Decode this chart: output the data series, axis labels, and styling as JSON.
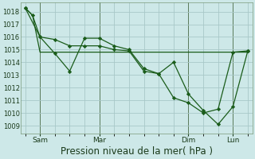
{
  "background_color": "#cde8e8",
  "grid_color": "#a8c8c8",
  "line_color": "#1a5c1a",
  "marker_color": "#1a5c1a",
  "yticks": [
    1009,
    1010,
    1011,
    1012,
    1013,
    1014,
    1015,
    1016,
    1017,
    1018
  ],
  "ylim_min": 1008.4,
  "ylim_max": 1018.7,
  "xlim_min": -0.3,
  "xlim_max": 15.3,
  "x_vlines": [
    1,
    5,
    11,
    14
  ],
  "x_tick_pos": [
    1,
    5,
    11,
    14
  ],
  "x_tick_labels": [
    "Sam",
    "Mar",
    "Dim",
    "Lun"
  ],
  "line1_x": [
    0,
    0.5,
    1,
    2,
    3,
    4,
    5,
    6,
    7,
    8,
    9,
    10,
    11,
    12,
    13,
    14,
    15
  ],
  "line1_y": [
    1018.3,
    1017.7,
    1016.0,
    1015.8,
    1015.3,
    1015.3,
    1015.3,
    1015.0,
    1014.9,
    1013.3,
    1013.1,
    1011.2,
    1010.8,
    1010.0,
    1010.3,
    1014.8,
    1014.9
  ],
  "line2_x": [
    0,
    0.5,
    1,
    3,
    5,
    11,
    14,
    15
  ],
  "line2_y": [
    1018.3,
    1017.7,
    1014.8,
    1014.8,
    1014.8,
    1014.8,
    1014.8,
    1014.8
  ],
  "line3_x": [
    0,
    1,
    2,
    3,
    4,
    5,
    6,
    7,
    8,
    9,
    10,
    11,
    12,
    13,
    14,
    15
  ],
  "line3_y": [
    1018.3,
    1016.0,
    1014.7,
    1013.3,
    1015.9,
    1015.9,
    1015.3,
    1015.0,
    1013.5,
    1013.1,
    1014.0,
    1011.5,
    1010.2,
    1009.1,
    1010.5,
    1014.9
  ],
  "xlabel": "Pression niveau de la mer( hPa )",
  "xlabel_fontsize": 8.5
}
